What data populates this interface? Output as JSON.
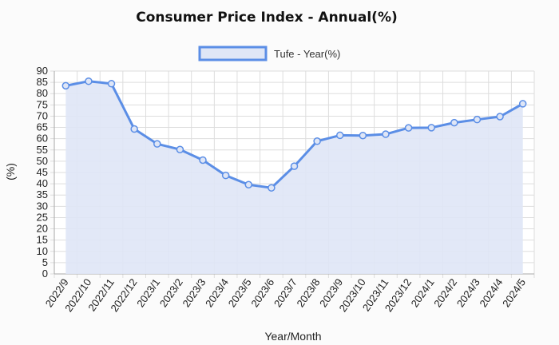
{
  "chart_data": {
    "type": "line",
    "title": "Consumer Price Index - Annual(%)",
    "xlabel": "Year/Month",
    "ylabel": "(%)",
    "ylim": [
      0,
      90
    ],
    "ytick_step": 5,
    "grid": true,
    "legend_position": "top-center",
    "categories": [
      "2022/9",
      "2022/10",
      "2022/11",
      "2022/12",
      "2023/1",
      "2023/2",
      "2023/3",
      "2023/4",
      "2023/5",
      "2023/6",
      "2023/7",
      "2023/8",
      "2023/9",
      "2023/10",
      "2023/11",
      "2023/12",
      "2024/1",
      "2024/2",
      "2024/3",
      "2024/4",
      "2024/5"
    ],
    "series": [
      {
        "name": "Tufe - Year(%)",
        "values": [
          83.5,
          85.5,
          84.4,
          64.3,
          57.7,
          55.2,
          50.5,
          43.7,
          39.6,
          38.2,
          47.8,
          58.9,
          61.5,
          61.4,
          62.0,
          64.8,
          64.9,
          67.1,
          68.5,
          69.8,
          75.5
        ],
        "color": "#5b8ee6",
        "fill": "#dfe6f6"
      }
    ]
  }
}
